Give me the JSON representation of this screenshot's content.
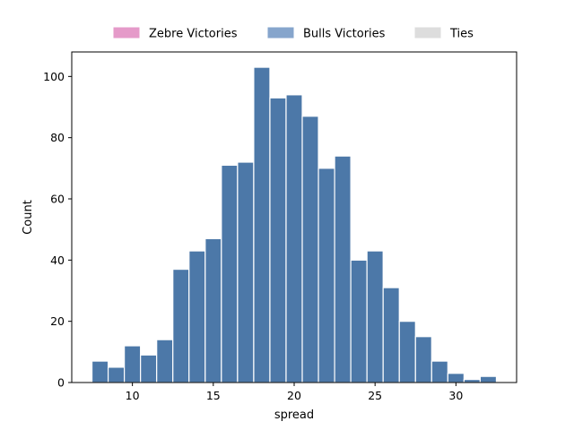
{
  "chart_data": {
    "type": "bar",
    "subtype": "histogram",
    "xlabel": "spread",
    "ylabel": "Count",
    "xlim": [
      6.25,
      33.75
    ],
    "ylim": [
      0,
      108
    ],
    "xticks": [
      10,
      15,
      20,
      25,
      30
    ],
    "yticks": [
      0,
      20,
      40,
      60,
      80,
      100
    ],
    "grid": false,
    "legend": {
      "placement": "top-center",
      "entries": [
        {
          "label": "Zebre Victories",
          "color": "#e59ac9"
        },
        {
          "label": "Bulls Victories",
          "color": "#86a5cc"
        },
        {
          "label": "Ties",
          "color": "#dddddd"
        }
      ]
    },
    "series": [
      {
        "color": "#4c78a8",
        "bin_width": 1,
        "bin_centers": [
          8,
          9,
          10,
          11,
          12,
          13,
          14,
          15,
          16,
          17,
          18,
          19,
          20,
          21,
          22,
          23,
          24,
          25,
          26,
          27,
          28,
          29,
          30,
          31,
          32
        ],
        "values": [
          7,
          5,
          12,
          9,
          14,
          37,
          43,
          47,
          71,
          72,
          103,
          93,
          94,
          87,
          70,
          74,
          40,
          43,
          31,
          20,
          15,
          7,
          3,
          1,
          2
        ]
      }
    ]
  }
}
